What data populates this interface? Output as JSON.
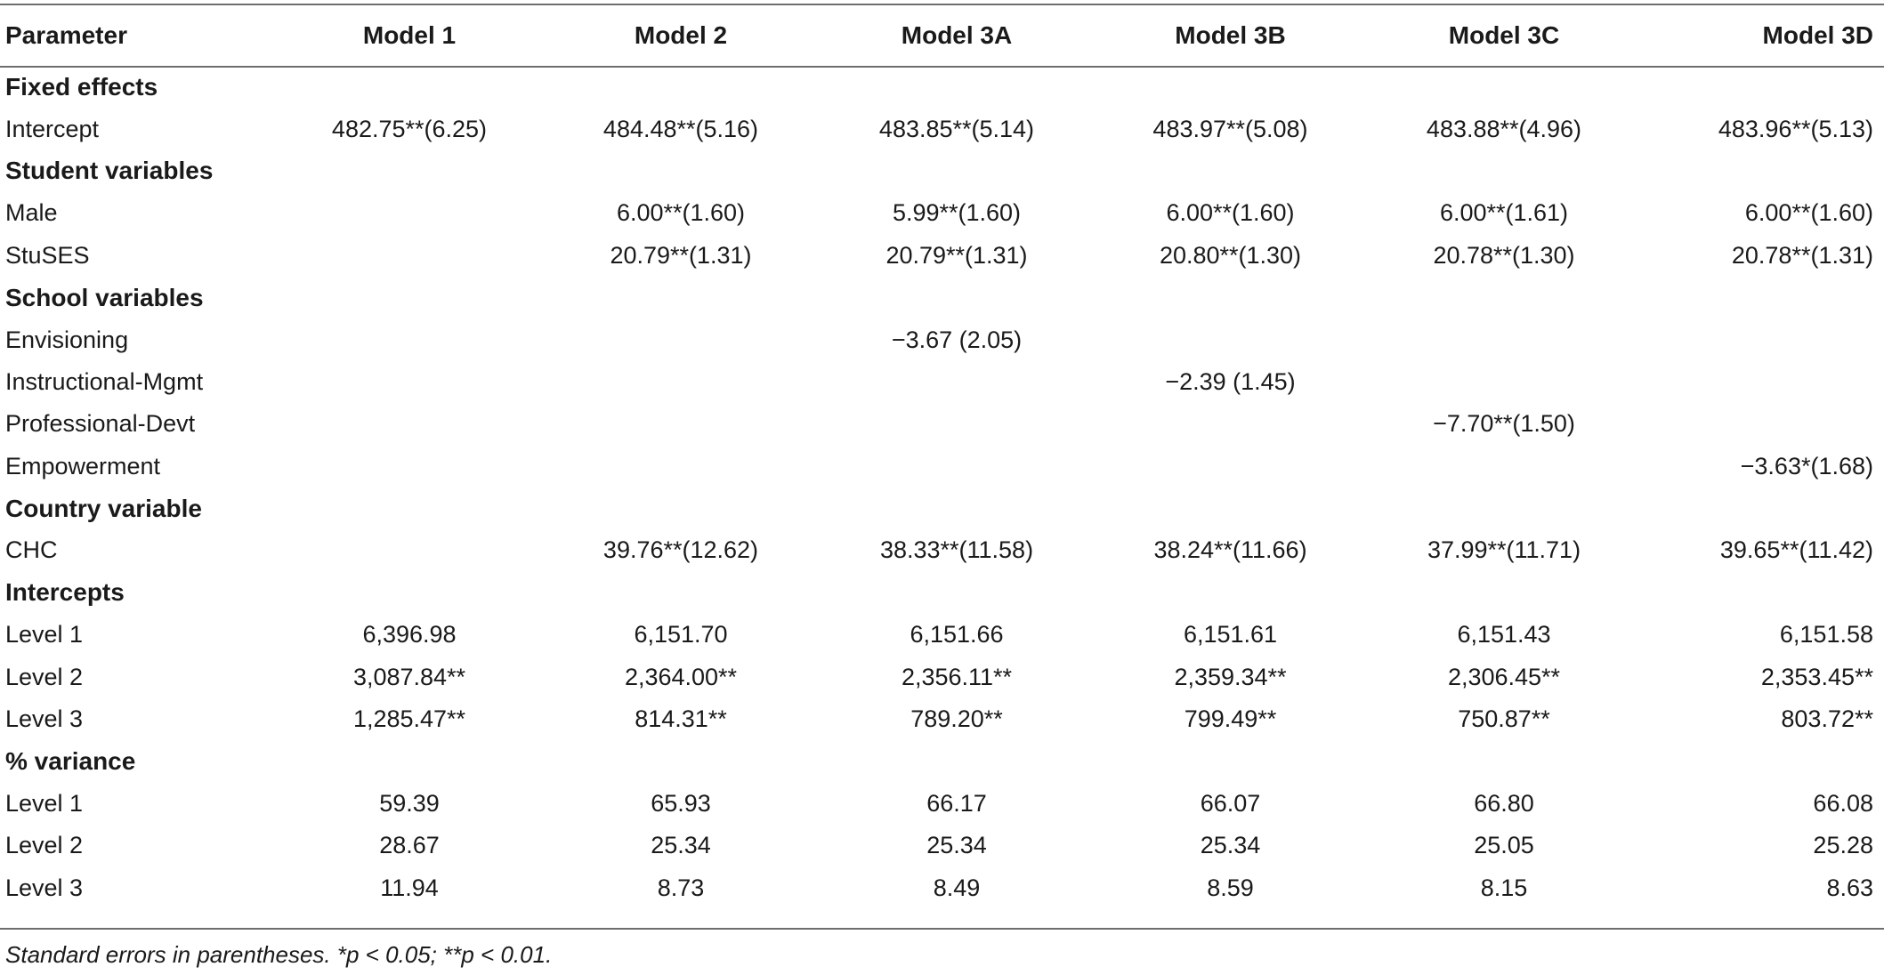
{
  "columns": [
    "Parameter",
    "Model 1",
    "Model 2",
    "Model 3A",
    "Model 3B",
    "Model 3C",
    "Model 3D"
  ],
  "rows": [
    {
      "section": true,
      "cells": [
        "Fixed effects",
        "",
        "",
        "",
        "",
        "",
        ""
      ]
    },
    {
      "section": false,
      "cells": [
        "Intercept",
        "482.75**(6.25)",
        "484.48**(5.16)",
        "483.85**(5.14)",
        "483.97**(5.08)",
        "483.88**(4.96)",
        "483.96**(5.13)"
      ]
    },
    {
      "section": true,
      "cells": [
        "Student variables",
        "",
        "",
        "",
        "",
        "",
        ""
      ]
    },
    {
      "section": false,
      "cells": [
        "Male",
        "",
        "6.00**(1.60)",
        "5.99**(1.60)",
        "6.00**(1.60)",
        "6.00**(1.61)",
        "6.00**(1.60)"
      ]
    },
    {
      "section": false,
      "cells": [
        "StuSES",
        "",
        "20.79**(1.31)",
        "20.79**(1.31)",
        "20.80**(1.30)",
        "20.78**(1.30)",
        "20.78**(1.31)"
      ]
    },
    {
      "section": true,
      "cells": [
        "School variables",
        "",
        "",
        "",
        "",
        "",
        ""
      ]
    },
    {
      "section": false,
      "cells": [
        "Envisioning",
        "",
        "",
        "−3.67 (2.05)",
        "",
        "",
        ""
      ]
    },
    {
      "section": false,
      "cells": [
        "Instructional-Mgmt",
        "",
        "",
        "",
        "−2.39 (1.45)",
        "",
        ""
      ]
    },
    {
      "section": false,
      "cells": [
        "Professional-Devt",
        "",
        "",
        "",
        "",
        "−7.70**(1.50)",
        ""
      ]
    },
    {
      "section": false,
      "cells": [
        "Empowerment",
        "",
        "",
        "",
        "",
        "",
        "−3.63*(1.68)"
      ]
    },
    {
      "section": true,
      "cells": [
        "Country variable",
        "",
        "",
        "",
        "",
        "",
        ""
      ]
    },
    {
      "section": false,
      "cells": [
        "CHC",
        "",
        "39.76**(12.62)",
        "38.33**(11.58)",
        "38.24**(11.66)",
        "37.99**(11.71)",
        "39.65**(11.42)"
      ]
    },
    {
      "section": true,
      "cells": [
        "Intercepts",
        "",
        "",
        "",
        "",
        "",
        ""
      ]
    },
    {
      "section": false,
      "cells": [
        "Level 1",
        "6,396.98",
        "6,151.70",
        "6,151.66",
        "6,151.61",
        "6,151.43",
        "6,151.58"
      ]
    },
    {
      "section": false,
      "cells": [
        "Level 2",
        "3,087.84**",
        "2,364.00**",
        "2,356.11**",
        "2,359.34**",
        "2,306.45**",
        "2,353.45**"
      ]
    },
    {
      "section": false,
      "cells": [
        "Level 3",
        "1,285.47**",
        "814.31**",
        "789.20**",
        "799.49**",
        "750.87**",
        "803.72**"
      ]
    },
    {
      "section": true,
      "cells": [
        "% variance",
        "",
        "",
        "",
        "",
        "",
        ""
      ]
    },
    {
      "section": false,
      "cells": [
        "Level 1",
        "59.39",
        "65.93",
        "66.17",
        "66.07",
        "66.80",
        "66.08"
      ]
    },
    {
      "section": false,
      "cells": [
        "Level 2",
        "28.67",
        "25.34",
        "25.34",
        "25.34",
        "25.05",
        "25.28"
      ]
    },
    {
      "section": false,
      "cells": [
        "Level 3",
        "11.94",
        "8.73",
        "8.49",
        "8.59",
        "8.15",
        "8.63"
      ]
    }
  ],
  "footnote": "Standard errors in parentheses. *p < 0.05; **p < 0.01."
}
